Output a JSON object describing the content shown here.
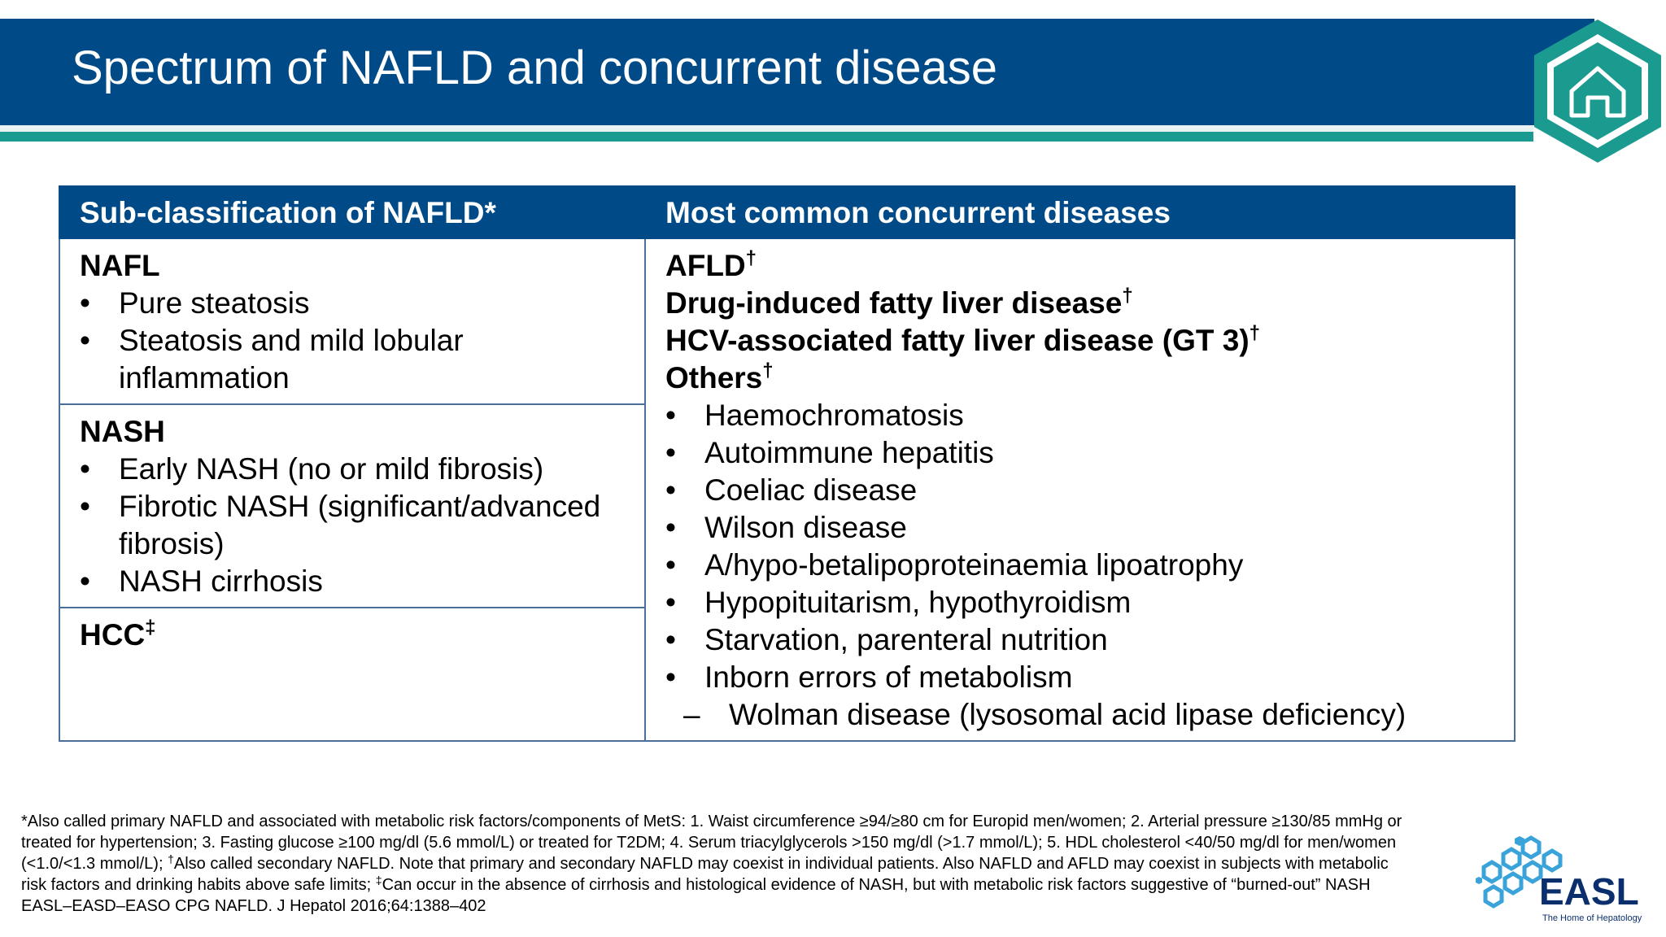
{
  "header": {
    "title": "Spectrum of NAFLD and concurrent disease",
    "home_icon": "home-icon"
  },
  "colors": {
    "title_bar": "#004b87",
    "accent_teal": "#1b9a8f",
    "table_header": "#004b87",
    "table_border": "#4a6f9a"
  },
  "table": {
    "col1_header": "Sub-classification of NAFLD*",
    "col2_header": "Most common concurrent diseases",
    "nafl": {
      "title": "NAFL",
      "items": [
        "Pure steatosis",
        "Steatosis and mild lobular inflammation"
      ]
    },
    "nash": {
      "title": "NASH",
      "items": [
        "Early NASH (no or mild fibrosis)",
        "Fibrotic NASH (significant/advanced fibrosis)",
        "NASH cirrhosis"
      ]
    },
    "hcc": {
      "title": "HCC",
      "mark": "‡"
    },
    "concurrent": {
      "dagger": "†",
      "headings": [
        "AFLD",
        "Drug-induced fatty liver disease",
        "HCV-associated fatty liver disease (GT 3)",
        "Others"
      ],
      "others": [
        "Haemochromatosis",
        "Autoimmune hepatitis",
        "Coeliac disease",
        "Wilson disease",
        "A/hypo-betalipoproteinaemia lipoatrophy",
        "Hypopituitarism, hypothyroidism",
        "Starvation, parenteral nutrition",
        "Inborn errors of metabolism"
      ],
      "sub_item": "Wolman disease (lysosomal acid lipase deficiency)"
    }
  },
  "footnote": {
    "part1": "*Also called primary NAFLD and associated with metabolic risk factors/components of MetS: 1. Waist circumference ≥94/≥80 cm for Europid men/women; 2. Arterial pressure ≥130/85 mmHg or treated for hypertension; 3. Fasting glucose ≥100 mg/dl (5.6 mmol/L) or treated for T2DM; 4. Serum triacylglycerols >150 mg/dl (>1.7 mmol/L); 5. HDL cholesterol <40/50 mg/dl for men/women (<1.0/<1.3 mmol/L); ",
    "dagger": "†",
    "part2": "Also called secondary NAFLD. Note that primary and secondary NAFLD may coexist in individual patients. Also NAFLD and AFLD may coexist in subjects with metabolic risk factors and drinking habits above safe limits; ",
    "ddagger": "‡",
    "part3": "Can occur in the absence of cirrhosis and histological evidence of NASH, but with metabolic risk factors suggestive of “burned-out” NASH",
    "citation": "EASL–EASD–EASO CPG NAFLD. J Hepatol 2016;64:1388–402"
  },
  "logo": {
    "text": "EASL",
    "tagline": "The Home of Hepatology",
    "icon": "easl-logo-icon"
  }
}
